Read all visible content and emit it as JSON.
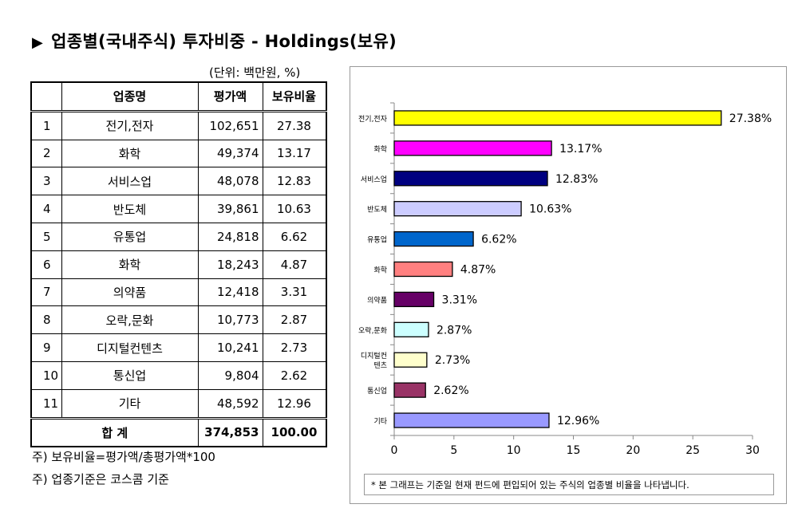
{
  "title": "업종별(국내주식) 투자비중 - Holdings(보유)",
  "title_marker": "▶",
  "unit_label": "(단위: 백만원, %)",
  "table": {
    "headers": [
      "",
      "업종명",
      "평가액",
      "보유비율"
    ],
    "rows": [
      [
        "1",
        "전기,전자",
        "102,651",
        "27.38"
      ],
      [
        "2",
        "화학",
        "49,374",
        "13.17"
      ],
      [
        "3",
        "서비스업",
        "48,078",
        "12.83"
      ],
      [
        "4",
        "반도체",
        "39,861",
        "10.63"
      ],
      [
        "5",
        "유통업",
        "24,818",
        "6.62"
      ],
      [
        "6",
        "화학",
        "18,243",
        "4.87"
      ],
      [
        "7",
        "의약품",
        "12,418",
        "3.31"
      ],
      [
        "8",
        "오락,문화",
        "10,773",
        "2.87"
      ],
      [
        "9",
        "디지털컨텐츠",
        "10,241",
        "2.73"
      ],
      [
        "10",
        "통신업",
        "9,804",
        "2.62"
      ],
      [
        "11",
        "기타",
        "48,592",
        "12.96"
      ]
    ],
    "total": {
      "label": "합   계",
      "value": "374,853",
      "ratio": "100.00"
    }
  },
  "notes": [
    "주) 보유비율=평가액/총평가액*100",
    "주) 업종기준은 코스콤 기준"
  ],
  "chart_note": "* 본 그래프는 기준일 현재 펀드에 편입되어 있는 주식의 업종별 비율을 나타냅니다.",
  "chart_data": {
    "type": "bar",
    "orientation": "horizontal",
    "categories": [
      "전기,전자",
      "화학",
      "서비스업",
      "반도체",
      "유통업",
      "화학",
      "의약품",
      "오락,문화",
      "디지털컨텐츠",
      "통신업",
      "기타"
    ],
    "category_labels": [
      [
        "전기,전자"
      ],
      [
        "화학"
      ],
      [
        "서비스업"
      ],
      [
        "반도체"
      ],
      [
        "유통업"
      ],
      [
        "화학"
      ],
      [
        "의약품"
      ],
      [
        "오락,문화"
      ],
      [
        "디지털컨",
        "텐츠"
      ],
      [
        "통신업"
      ],
      [
        "기타"
      ]
    ],
    "values": [
      27.38,
      13.17,
      12.83,
      10.63,
      6.62,
      4.87,
      3.31,
      2.87,
      2.73,
      2.62,
      12.96
    ],
    "data_labels": [
      "27.38%",
      "13.17%",
      "12.83%",
      "10.63%",
      "6.62%",
      "4.87%",
      "3.31%",
      "2.87%",
      "2.73%",
      "2.62%",
      "12.96%"
    ],
    "colors": [
      "#FFFF00",
      "#FF00FF",
      "#000080",
      "#CCCCFF",
      "#0066CC",
      "#FF8080",
      "#660066",
      "#CCFFFF",
      "#FFFFCC",
      "#993366",
      "#9999FF"
    ],
    "xlim": [
      0,
      30
    ],
    "xticks": [
      0,
      5,
      10,
      15,
      20,
      25,
      30
    ],
    "title": "",
    "xlabel": "",
    "ylabel": ""
  }
}
